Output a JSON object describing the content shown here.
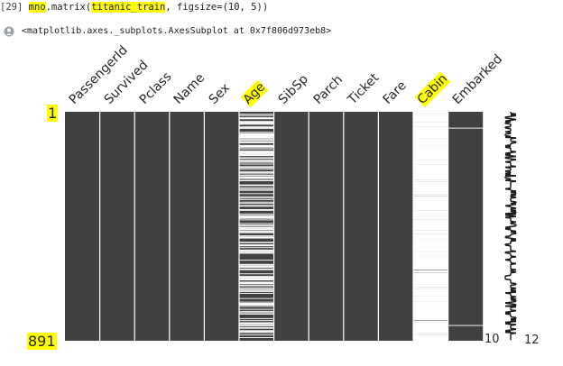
{
  "cell": {
    "prompt": "[29]",
    "code_prefix": "mno.matrix(",
    "code_highlight": "titanic_train",
    "code_suffix": ", figsize=(10, 5))",
    "output_text": "<matplotlib.axes._subplots.AxesSubplot at 0x7f806d973eb8>"
  },
  "chart_data": {
    "type": "heatmap",
    "columns": [
      "PassengerId",
      "Survived",
      "Pclass",
      "Name",
      "Sex",
      "Age",
      "SibSp",
      "Parch",
      "Ticket",
      "Fare",
      "Cabin",
      "Embarked"
    ],
    "highlighted_columns": [
      "Age",
      "Cabin"
    ],
    "n_rows": 891,
    "row_labels": [
      "1",
      "891"
    ],
    "missing_rows": {
      "Age": "scattered",
      "Cabin": "majority",
      "Embarked": [
        62,
        830
      ]
    },
    "sparkline_ticks": [
      "10",
      "12"
    ],
    "colors": {
      "present": "#414141",
      "missing": "#ffffff",
      "highlight": "#ffff00"
    }
  }
}
